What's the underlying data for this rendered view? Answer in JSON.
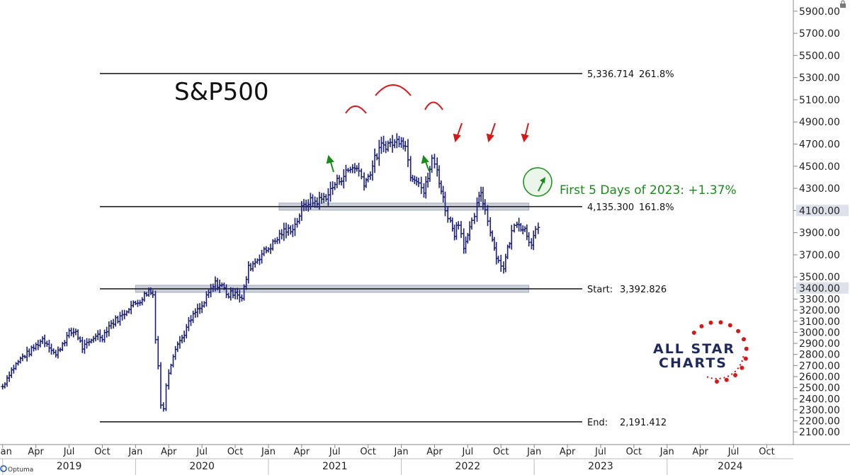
{
  "chart_data": {
    "type": "bar",
    "subtype": "weekly-ohlc",
    "title": "S&P500",
    "ylim": [
      2050,
      5950
    ],
    "y_ticks": [
      "2100.00",
      "2200.00",
      "2300.00",
      "2400.00",
      "2500.00",
      "2600.00",
      "2700.00",
      "2800.00",
      "2900.00",
      "3000.00",
      "3100.00",
      "3200.00",
      "3300.00",
      "3400.00",
      "3500.00",
      "3700.00",
      "3900.00",
      "4100.00",
      "4300.00",
      "4500.00",
      "4700.00",
      "4900.00",
      "5100.00",
      "5300.00",
      "5500.00",
      "5700.00",
      "5900.00"
    ],
    "x_ticks": [
      {
        "label": "an",
        "t": 2019.0
      },
      {
        "label": "Apr",
        "t": 2019.25
      },
      {
        "label": "Jul",
        "t": 2019.5
      },
      {
        "label": "Oct",
        "t": 2019.75
      },
      {
        "label": "Jan",
        "t": 2020.0
      },
      {
        "label": "Apr",
        "t": 2020.25
      },
      {
        "label": "Jul",
        "t": 2020.5
      },
      {
        "label": "Oct",
        "t": 2020.75
      },
      {
        "label": "Jan",
        "t": 2021.0
      },
      {
        "label": "Apr",
        "t": 2021.25
      },
      {
        "label": "Jul",
        "t": 2021.5
      },
      {
        "label": "Oct",
        "t": 2021.75
      },
      {
        "label": "Jan",
        "t": 2022.0
      },
      {
        "label": "Apr",
        "t": 2022.25
      },
      {
        "label": "Jul",
        "t": 2022.5
      },
      {
        "label": "Oct",
        "t": 2022.75
      },
      {
        "label": "Jan",
        "t": 2023.0
      },
      {
        "label": "Apr",
        "t": 2023.25
      },
      {
        "label": "Jul",
        "t": 2023.5
      },
      {
        "label": "Oct",
        "t": 2023.75
      },
      {
        "label": "Jan",
        "t": 2024.0
      },
      {
        "label": "Apr",
        "t": 2024.25
      },
      {
        "label": "Jul",
        "t": 2024.5
      },
      {
        "label": "Oct",
        "t": 2024.75
      }
    ],
    "years": [
      {
        "label": "2019",
        "t": 2019.0
      },
      {
        "label": "2020",
        "t": 2020.0
      },
      {
        "label": "2021",
        "t": 2021.0
      },
      {
        "label": "2022",
        "t": 2022.0
      },
      {
        "label": "2023",
        "t": 2023.0
      },
      {
        "label": "2024",
        "t": 2024.0
      }
    ],
    "x_range": [
      2018.98,
      2024.95
    ],
    "levels": [
      {
        "value": 5336.714,
        "label": "5,336.714",
        "pct": "261.8%"
      },
      {
        "value": 4135.3,
        "label": "4,135.300",
        "pct": "161.8%"
      },
      {
        "value": 3392.826,
        "label": "Start:",
        "val": "3,392.826"
      },
      {
        "value": 2191.412,
        "label": "End:",
        "val": "2,191.412"
      }
    ],
    "zones": [
      {
        "t0": 2021.08,
        "t1": 2022.96,
        "value": 4135
      },
      {
        "t0": 2020.0,
        "t1": 2022.96,
        "value": 3393
      }
    ],
    "highlighted_y": [
      "3400.00",
      "4100.00"
    ],
    "annotation": "First 5 Days of 2023: +1.37%",
    "series": [
      {
        "name": "S&P500",
        "points": [
          [
            2019.0,
            2510
          ],
          [
            2019.05,
            2630
          ],
          [
            2019.1,
            2710
          ],
          [
            2019.15,
            2780
          ],
          [
            2019.2,
            2820
          ],
          [
            2019.25,
            2880
          ],
          [
            2019.3,
            2940
          ],
          [
            2019.35,
            2880
          ],
          [
            2019.4,
            2790
          ],
          [
            2019.45,
            2900
          ],
          [
            2019.5,
            2990
          ],
          [
            2019.55,
            3010
          ],
          [
            2019.6,
            2860
          ],
          [
            2019.65,
            2900
          ],
          [
            2019.7,
            2980
          ],
          [
            2019.75,
            2960
          ],
          [
            2019.8,
            3060
          ],
          [
            2019.85,
            3110
          ],
          [
            2019.9,
            3150
          ],
          [
            2019.95,
            3230
          ],
          [
            2020.0,
            3260
          ],
          [
            2020.05,
            3310
          ],
          [
            2020.1,
            3380
          ],
          [
            2020.13,
            3340
          ],
          [
            2020.15,
            2960
          ],
          [
            2020.17,
            2700
          ],
          [
            2020.19,
            2350
          ],
          [
            2020.21,
            2300
          ],
          [
            2020.23,
            2530
          ],
          [
            2020.25,
            2650
          ],
          [
            2020.3,
            2870
          ],
          [
            2020.35,
            2950
          ],
          [
            2020.4,
            3080
          ],
          [
            2020.45,
            3180
          ],
          [
            2020.5,
            3230
          ],
          [
            2020.55,
            3350
          ],
          [
            2020.6,
            3440
          ],
          [
            2020.65,
            3420
          ],
          [
            2020.7,
            3330
          ],
          [
            2020.75,
            3380
          ],
          [
            2020.8,
            3300
          ],
          [
            2020.85,
            3580
          ],
          [
            2020.9,
            3640
          ],
          [
            2020.95,
            3710
          ],
          [
            2021.0,
            3760
          ],
          [
            2021.05,
            3820
          ],
          [
            2021.1,
            3900
          ],
          [
            2021.15,
            3920
          ],
          [
            2021.2,
            3970
          ],
          [
            2021.25,
            4110
          ],
          [
            2021.3,
            4180
          ],
          [
            2021.35,
            4180
          ],
          [
            2021.4,
            4200
          ],
          [
            2021.45,
            4250
          ],
          [
            2021.5,
            4340
          ],
          [
            2021.55,
            4400
          ],
          [
            2021.6,
            4460
          ],
          [
            2021.65,
            4500
          ],
          [
            2021.68,
            4450
          ],
          [
            2021.72,
            4360
          ],
          [
            2021.75,
            4400
          ],
          [
            2021.8,
            4560
          ],
          [
            2021.85,
            4680
          ],
          [
            2021.9,
            4700
          ],
          [
            2021.95,
            4710
          ],
          [
            2022.0,
            4760
          ],
          [
            2022.03,
            4680
          ],
          [
            2022.07,
            4430
          ],
          [
            2022.1,
            4400
          ],
          [
            2022.13,
            4380
          ],
          [
            2022.17,
            4260
          ],
          [
            2022.2,
            4400
          ],
          [
            2022.23,
            4550
          ],
          [
            2022.27,
            4470
          ],
          [
            2022.3,
            4280
          ],
          [
            2022.33,
            4120
          ],
          [
            2022.37,
            3990
          ],
          [
            2022.4,
            3900
          ],
          [
            2022.43,
            4000
          ],
          [
            2022.47,
            3790
          ],
          [
            2022.5,
            3860
          ],
          [
            2022.53,
            3980
          ],
          [
            2022.57,
            4140
          ],
          [
            2022.6,
            4270
          ],
          [
            2022.63,
            4100
          ],
          [
            2022.67,
            3930
          ],
          [
            2022.7,
            3760
          ],
          [
            2022.73,
            3640
          ],
          [
            2022.77,
            3590
          ],
          [
            2022.8,
            3750
          ],
          [
            2022.83,
            3900
          ],
          [
            2022.87,
            4010
          ],
          [
            2022.9,
            3960
          ],
          [
            2022.93,
            3930
          ],
          [
            2022.96,
            3840
          ],
          [
            2022.98,
            3820
          ],
          [
            2023.01,
            3900
          ],
          [
            2023.03,
            3920
          ]
        ]
      }
    ]
  },
  "logo": {
    "line1": "ALL STAR",
    "line2": "CHARTS"
  },
  "branding": "Optuma",
  "colors": {
    "bars": "#1a1f7a",
    "zone": "#c6ccd6",
    "green": "#1a8a1a",
    "red": "#d11a1a",
    "logo": "#1e2a5e"
  }
}
